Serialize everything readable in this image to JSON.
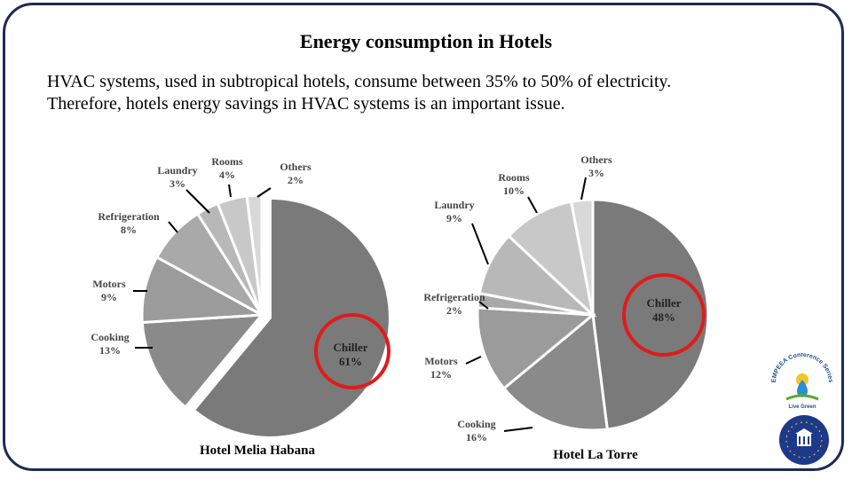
{
  "slide": {
    "title": "Energy consumption in Hotels",
    "body_line1": "HVAC systems, used in subtropical hotels, consume between 35% to 50% of electricity.",
    "body_line2": "Therefore, hotels energy savings in HVAC systems is an important issue."
  },
  "logos": {
    "conference_text": "EMPEEA Conference Series",
    "tagline": "Live Green"
  },
  "colors": {
    "frame": "#1c2a55",
    "highlight_circle": "#e01b1b"
  },
  "chart_data": [
    {
      "type": "pie",
      "title": "Hotel Melia Habana",
      "slices": [
        {
          "name": "Chiller",
          "value": 61,
          "label": "61%",
          "color": "#7a7a7a",
          "highlighted": true
        },
        {
          "name": "Cooking",
          "value": 13,
          "label": "13%",
          "color": "#8a8a8a"
        },
        {
          "name": "Motors",
          "value": 9,
          "label": "9%",
          "color": "#9b9b9b"
        },
        {
          "name": "Refrigeration",
          "value": 8,
          "label": "8%",
          "color": "#a9a9a9"
        },
        {
          "name": "Laundry",
          "value": 3,
          "label": "3%",
          "color": "#b8b8b8"
        },
        {
          "name": "Rooms",
          "value": 4,
          "label": "4%",
          "color": "#c8c8c8"
        },
        {
          "name": "Others",
          "value": 2,
          "label": "2%",
          "color": "#d8d8d8"
        }
      ]
    },
    {
      "type": "pie",
      "title": "Hotel La Torre",
      "slices": [
        {
          "name": "Chiller",
          "value": 48,
          "label": "48%",
          "color": "#7a7a7a",
          "highlighted": true
        },
        {
          "name": "Cooking",
          "value": 16,
          "label": "16%",
          "color": "#8a8a8a"
        },
        {
          "name": "Motors",
          "value": 12,
          "label": "12%",
          "color": "#9b9b9b"
        },
        {
          "name": "Refrigeration",
          "value": 2,
          "label": "2%",
          "color": "#a9a9a9"
        },
        {
          "name": "Laundry",
          "value": 9,
          "label": "9%",
          "color": "#b8b8b8"
        },
        {
          "name": "Rooms",
          "value": 10,
          "label": "10%",
          "color": "#c8c8c8"
        },
        {
          "name": "Others",
          "value": 3,
          "label": "3%",
          "color": "#d8d8d8"
        }
      ]
    }
  ]
}
